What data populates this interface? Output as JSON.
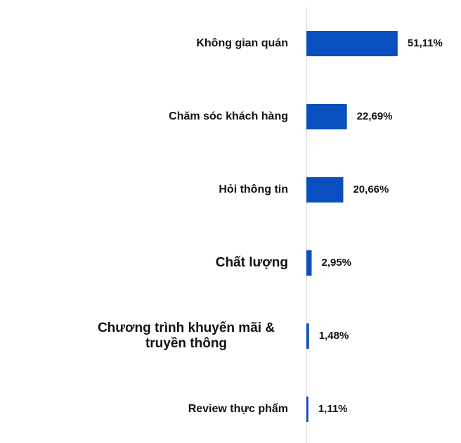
{
  "chart_data": {
    "type": "bar",
    "orientation": "horizontal",
    "categories": [
      "Không gian quán",
      "Chăm sóc khách hàng",
      "Hỏi thông tin",
      "Chất lượng",
      "Chương trình khuyến mãi & truyền thông",
      "Review thực phẩm"
    ],
    "values": [
      51.11,
      22.69,
      20.66,
      2.95,
      1.48,
      1.11
    ],
    "value_labels": [
      "51,11%",
      "22,69%",
      "20,66%",
      "2,95%",
      "1,48%",
      "1,11%"
    ],
    "color": "#0a4fbf"
  }
}
